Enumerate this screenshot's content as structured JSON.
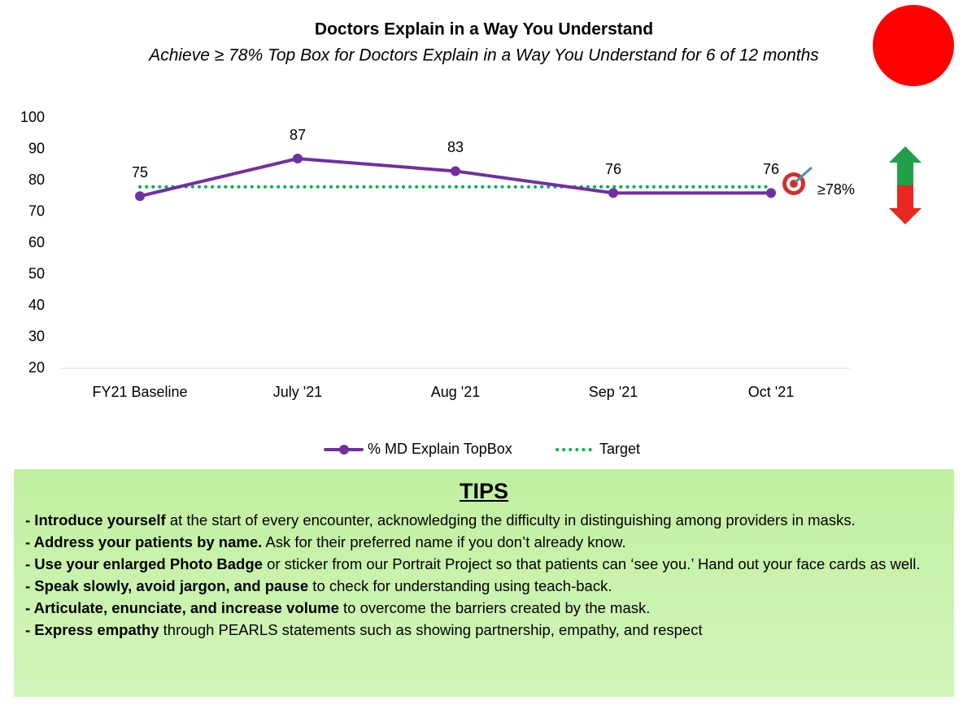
{
  "chart_data": {
    "type": "line",
    "title": "Doctors Explain in a Way You Understand",
    "subtitle": "Achieve ≥ 78% Top Box for Doctors Explain in a Way You Understand for 6 of 12 months",
    "status_color": "#ff0000",
    "categories": [
      "FY21 Baseline",
      "July '21",
      "Aug '21",
      "Sep '21",
      "Oct '21"
    ],
    "series": [
      {
        "name": "% MD Explain TopBox",
        "color": "#7030a0",
        "style": "solid",
        "values": [
          75,
          87,
          83,
          76,
          76
        ]
      },
      {
        "name": "Target",
        "color": "#00b050",
        "style": "dotted",
        "values": [
          78,
          78,
          78,
          78,
          78
        ]
      }
    ],
    "data_labels_series": 0,
    "target_annotation": "≥78%",
    "ylim": [
      20,
      100
    ],
    "yticks": [
      20,
      30,
      40,
      50,
      60,
      70,
      80,
      90,
      100
    ],
    "grid": false
  },
  "tips": {
    "title": "TIPS",
    "items": [
      {
        "bold": "- Introduce yourself",
        "text": " at the start of every encounter, acknowledging the difficulty in distinguishing among providers in masks."
      },
      {
        "bold": "- Address your patients by name.",
        "text": " Ask for their preferred name if you don’t already know."
      },
      {
        "bold": "- Use your enlarged Photo Badge",
        "text": " or sticker from our Portrait Project so that patients can ‘see you.’ Hand out your face cards as well."
      },
      {
        "bold": "- Speak slowly, avoid jargon, and pause",
        "text": " to check for understanding using teach-back."
      },
      {
        "bold": "- Articulate, enunciate, and increase volume",
        "text": " to overcome the barriers created by the mask."
      },
      {
        "bold": "- Express empathy",
        "text": " through PEARLS statements such as showing partnership, empathy, and respect"
      }
    ]
  }
}
